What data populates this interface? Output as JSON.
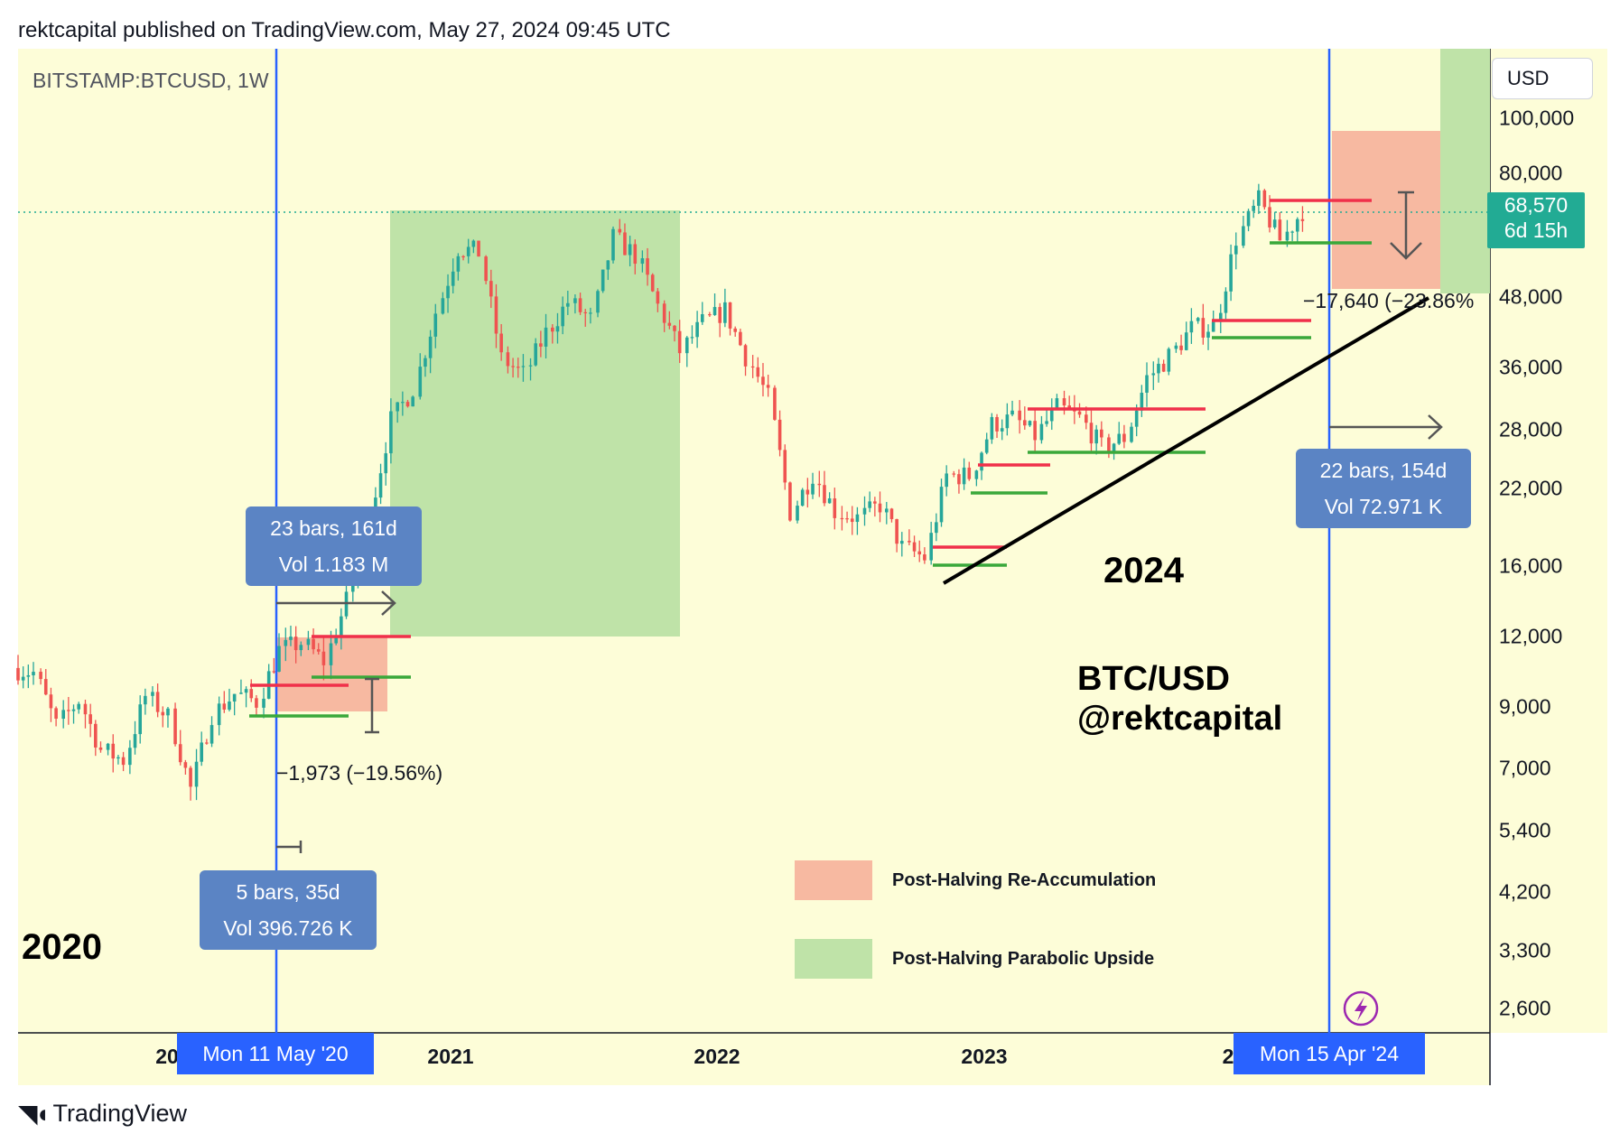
{
  "header": {
    "published_by": "rektcapital published on TradingView.com, May 27, 2024 09:45 UTC"
  },
  "symbol": {
    "label": "BITSTAMP:BTCUSD, 1W"
  },
  "currency_button": {
    "label": "USD"
  },
  "price_tag": {
    "price": "68,570",
    "countdown": "6d 15h",
    "color": "#22ab94"
  },
  "footer": {
    "brand": "TradingView"
  },
  "colors": {
    "background": "#fdfdd8",
    "up_candle": "#26a69a",
    "down_candle": "#ef5350",
    "halving_line": "#2962ff",
    "reaccumulation_box": "#f7b9a1",
    "parabolic_box": "#bfe3a8",
    "resistance": "#f0304a",
    "support": "#3aa83a"
  },
  "chart_data": {
    "type": "candlestick",
    "title": "",
    "y_scale": "log",
    "ylim": [
      2300,
      125000
    ],
    "y_ticks": [
      "100,000",
      "80,000",
      "68,570",
      "48,000",
      "36,000",
      "28,000",
      "22,000",
      "16,000",
      "12,000",
      "9,000",
      "7,000",
      "5,400",
      "4,200",
      "3,300",
      "2,600"
    ],
    "x_ticks": [
      "2021",
      "2022",
      "2023"
    ],
    "x_tick_partial": [
      "20",
      "2"
    ],
    "halving_markers": [
      {
        "label": "Mon 11 May '20"
      },
      {
        "label": "Mon 15 Apr '24"
      }
    ],
    "last_price": 68570,
    "series": [
      {
        "name": "BTCUSD weekly close",
        "points": [
          [
            "2019-07",
            10500
          ],
          [
            "2019-08",
            10300
          ],
          [
            "2019-09",
            8300
          ],
          [
            "2019-10",
            9200
          ],
          [
            "2019-11",
            7500
          ],
          [
            "2019-12",
            7200
          ],
          [
            "2020-01",
            9350
          ],
          [
            "2020-02",
            8600
          ],
          [
            "2020-03",
            6400
          ],
          [
            "2020-04",
            8700
          ],
          [
            "2020-05",
            9450
          ],
          [
            "2020-06",
            9150
          ],
          [
            "2020-07",
            11300
          ],
          [
            "2020-08",
            11650
          ],
          [
            "2020-09",
            10800
          ],
          [
            "2020-10",
            13800
          ],
          [
            "2020-11",
            19700
          ],
          [
            "2020-12",
            29000
          ],
          [
            "2021-01",
            33100
          ],
          [
            "2021-02",
            45200
          ],
          [
            "2021-03",
            58800
          ],
          [
            "2021-04",
            57700
          ],
          [
            "2021-05",
            37300
          ],
          [
            "2021-06",
            35000
          ],
          [
            "2021-07",
            41500
          ],
          [
            "2021-08",
            47100
          ],
          [
            "2021-09",
            43800
          ],
          [
            "2021-10",
            61300
          ],
          [
            "2021-11",
            57000
          ],
          [
            "2021-12",
            46300
          ],
          [
            "2022-01",
            38500
          ],
          [
            "2022-02",
            43200
          ],
          [
            "2022-03",
            45500
          ],
          [
            "2022-04",
            37700
          ],
          [
            "2022-05",
            31800
          ],
          [
            "2022-06",
            19900
          ],
          [
            "2022-07",
            23300
          ],
          [
            "2022-08",
            20000
          ],
          [
            "2022-09",
            19400
          ],
          [
            "2022-10",
            20500
          ],
          [
            "2022-11",
            17200
          ],
          [
            "2022-12",
            16500
          ],
          [
            "2023-01",
            23100
          ],
          [
            "2023-02",
            23100
          ],
          [
            "2023-03",
            28500
          ],
          [
            "2023-04",
            29200
          ],
          [
            "2023-05",
            27200
          ],
          [
            "2023-06",
            30500
          ],
          [
            "2023-07",
            29200
          ],
          [
            "2023-08",
            26000
          ],
          [
            "2023-09",
            27000
          ],
          [
            "2023-10",
            34500
          ],
          [
            "2023-11",
            37700
          ],
          [
            "2023-12",
            42300
          ],
          [
            "2024-01",
            42600
          ],
          [
            "2024-02",
            61200
          ],
          [
            "2024-03",
            71300
          ],
          [
            "2024-04",
            60700
          ],
          [
            "2024-05",
            68570
          ]
        ]
      }
    ],
    "annotations": {
      "measure_2020_range": {
        "line1": "23 bars, 161d",
        "line2": "Vol 1.183 M"
      },
      "measure_2020_dip": {
        "line1": "5 bars, 35d",
        "line2": "Vol 396.726 K"
      },
      "measure_2024_range": {
        "line1": "22 bars, 154d",
        "line2": "Vol 72.971 K"
      },
      "drawdown_2020": "−1,973 (−19.56%)",
      "drawdown_2024": "−17,640 (−23.86%",
      "year_label_2020": "2020",
      "year_label_2024": "2024",
      "watermark_line1": "BTC/USD",
      "watermark_line2": "@rektcapital"
    },
    "legend": [
      {
        "label": "Post-Halving Re-Accumulation",
        "color": "#f7b9a1"
      },
      {
        "label": "Post-Halving Parabolic Upside",
        "color": "#bfe3a8"
      }
    ]
  }
}
